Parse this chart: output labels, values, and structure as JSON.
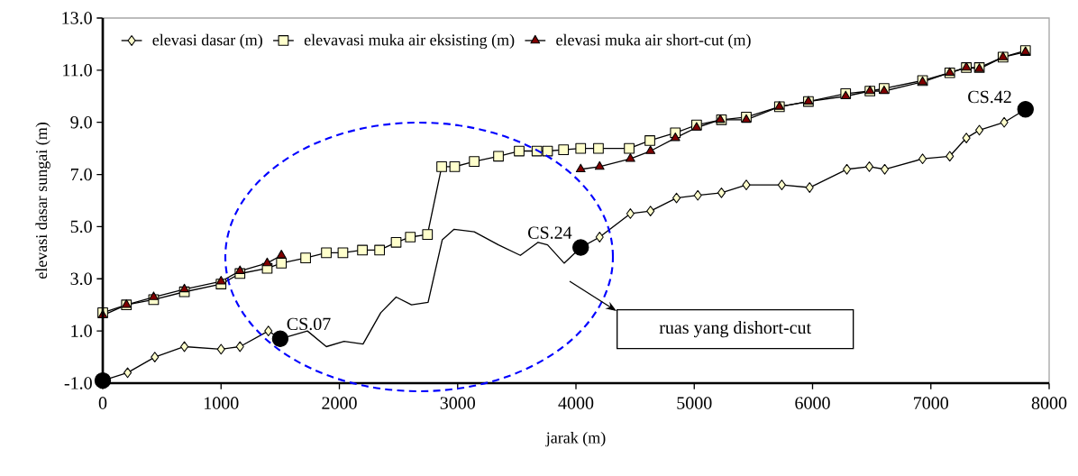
{
  "chart_data": {
    "type": "line",
    "xlabel": "jarak (m)",
    "ylabel": "elevasi dasar sungai (m)",
    "xlim": [
      0,
      8000
    ],
    "xticks": [
      0,
      1000,
      2000,
      3000,
      4000,
      5000,
      6000,
      7000,
      8000
    ],
    "ylim": [
      -1,
      13
    ],
    "yticks": [
      {
        "value": -1,
        "label": "-1.0"
      },
      {
        "value": 1,
        "label": "1.0"
      },
      {
        "value": 3,
        "label": "3.0"
      },
      {
        "value": 5,
        "label": "5.0"
      },
      {
        "value": 7,
        "label": "7.0"
      },
      {
        "value": 9,
        "label": "9.0"
      },
      {
        "value": 11,
        "label": "11.0"
      },
      {
        "value": 13,
        "label": "13.0"
      }
    ],
    "grid": false,
    "legend": "top left",
    "series": [
      {
        "name": "elevasi dasar (m)",
        "color": "#ffffcc",
        "marker": "diamond",
        "x": [
          210,
          440,
          690,
          1000,
          1160,
          1400
        ],
        "values": [
          -0.6,
          0.0,
          0.4,
          0.3,
          0.4,
          1.0
        ]
      },
      {
        "color": "#ffffcc",
        "marker": "diamond",
        "x": [
          4200,
          4460,
          4630,
          4850,
          5030,
          5230,
          5440,
          5740,
          5975,
          6290,
          6480,
          6610,
          6930,
          7160,
          7300,
          7410,
          7620
        ],
        "values": [
          4.6,
          5.5,
          5.6,
          6.1,
          6.2,
          6.3,
          6.6,
          6.6,
          6.5,
          7.2,
          7.3,
          7.2,
          7.6,
          7.7,
          8.4,
          8.7,
          9.0
        ]
      },
      {
        "name": "elevavasi muka air eksisting (m)",
        "color": "#ffffcc",
        "marker": "square",
        "x": [
          0,
          200,
          430,
          690,
          1000,
          1160,
          1390,
          1510,
          1715,
          1890,
          2030,
          2195,
          2340,
          2480,
          2600,
          2745,
          2865,
          2975,
          3140,
          3345,
          3520,
          3670,
          3760,
          3895,
          4040,
          4190,
          4450,
          4625,
          4840,
          5020,
          5230,
          5440,
          5720,
          5965,
          6280,
          6485,
          6605,
          6930,
          7160,
          7300,
          7410,
          7610,
          7800
        ],
        "values": [
          1.7,
          2.0,
          2.2,
          2.5,
          2.8,
          3.2,
          3.4,
          3.6,
          3.8,
          4.0,
          4.0,
          4.1,
          4.1,
          4.4,
          4.6,
          4.7,
          7.3,
          7.3,
          7.5,
          7.7,
          7.9,
          7.9,
          7.9,
          7.95,
          8.0,
          8.0,
          8.0,
          8.3,
          8.6,
          8.9,
          9.1,
          9.2,
          9.6,
          9.8,
          10.1,
          10.2,
          10.3,
          10.6,
          10.9,
          11.1,
          11.1,
          11.5,
          11.75
        ]
      },
      {
        "name": "elevasi muka air short-cut (m)",
        "color": "#800000",
        "marker": "triangle",
        "x": [
          0,
          200,
          430,
          690,
          1000,
          1160,
          1390,
          1510
        ],
        "values": [
          1.6,
          2.0,
          2.3,
          2.6,
          2.9,
          3.3,
          3.6,
          3.9
        ]
      },
      {
        "color": "#800000",
        "marker": "triangle",
        "x": [
          4040,
          4200,
          4460,
          4630,
          4840,
          5020,
          5220,
          5440,
          5720,
          5965,
          6280,
          6485,
          6605,
          6930,
          7160,
          7300,
          7410,
          7610,
          7800
        ],
        "values": [
          7.2,
          7.3,
          7.6,
          7.9,
          8.4,
          8.8,
          9.1,
          9.1,
          9.6,
          9.8,
          10.0,
          10.2,
          10.2,
          10.55,
          10.9,
          11.1,
          11.05,
          11.5,
          11.7
        ]
      },
      {
        "color": "#000000",
        "marker": "none",
        "x": [
          0,
          210
        ],
        "values": [
          -0.9,
          -0.6
        ]
      },
      {
        "color": "#000000",
        "marker": "none",
        "x": [
          1400,
          1500,
          1730,
          1890,
          2040,
          2200,
          2350,
          2480,
          2610,
          2750,
          2870,
          2970,
          3140,
          3345,
          3530,
          3680,
          3760,
          3900,
          4040,
          4200
        ],
        "values": [
          1.0,
          0.7,
          1.0,
          0.4,
          0.6,
          0.5,
          1.7,
          2.3,
          2.0,
          2.1,
          4.5,
          4.9,
          4.8,
          4.3,
          3.9,
          4.4,
          4.3,
          3.6,
          4.2,
          4.6
        ]
      },
      {
        "color": "#000000",
        "marker": "none",
        "x": [
          7620,
          7800
        ],
        "values": [
          9.0,
          9.5
        ]
      },
      {
        "type": "scatter",
        "color": "#000000",
        "marker": "circle",
        "x": [
          0,
          1500,
          4040,
          7800
        ],
        "values": [
          -0.9,
          0.7,
          4.2,
          9.5
        ]
      }
    ],
    "annotations": [
      {
        "text": "CS.07",
        "x": 1500,
        "y": 0.7
      },
      {
        "text": "CS.24",
        "x": 4040,
        "y": 4.2
      },
      {
        "text": "CS.42",
        "x": 7800,
        "y": 9.5
      },
      "ruas yang dishort-cut"
    ]
  }
}
